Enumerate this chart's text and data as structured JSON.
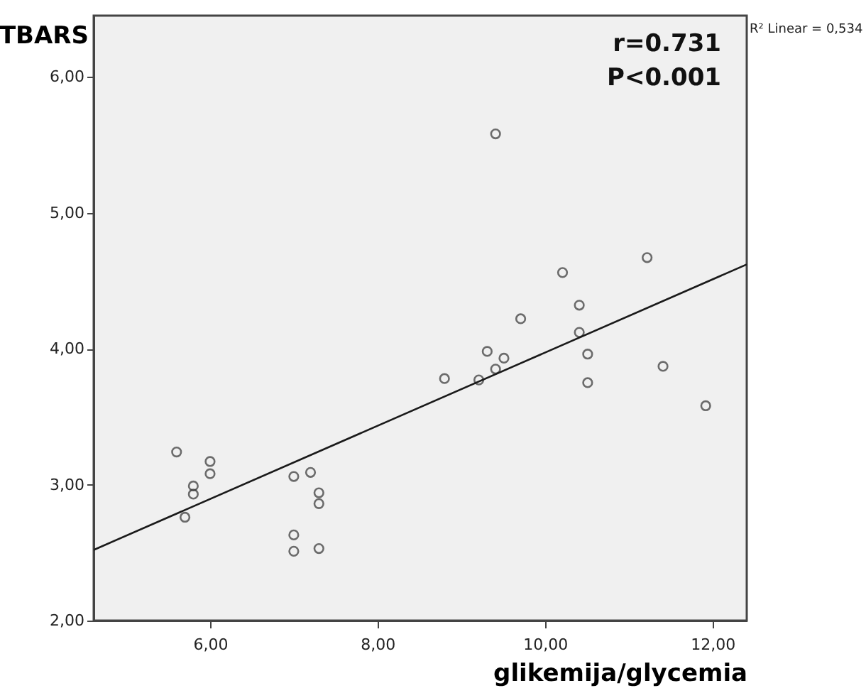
{
  "chart_data": {
    "type": "scatter",
    "xlabel": "glikemija/glycemia",
    "ylabel": "TBARS",
    "annotations": [
      "r=0.731",
      "P<0.001",
      "R² Linear = 0,534"
    ],
    "xlim": [
      4.61,
      12.41
    ],
    "ylim": [
      2.0,
      6.45
    ],
    "xticks": [
      {
        "value": 6,
        "label": "6,00"
      },
      {
        "value": 8,
        "label": "8,00"
      },
      {
        "value": 10,
        "label": "10,00"
      },
      {
        "value": 12,
        "label": "12,00"
      }
    ],
    "yticks": [
      {
        "value": 2,
        "label": "2,00"
      },
      {
        "value": 3,
        "label": "3,00"
      },
      {
        "value": 4,
        "label": "4,00"
      },
      {
        "value": 5,
        "label": "5,00"
      },
      {
        "value": 6,
        "label": "6,00"
      }
    ],
    "grid": false,
    "series": [
      {
        "marker": "circle",
        "color": "#333333",
        "x": [
          5.6,
          6.0,
          6.0,
          5.8,
          5.8,
          5.7,
          7.0,
          7.2,
          7.3,
          7.3,
          7.0,
          7.0,
          7.3,
          9.41,
          11.22,
          10.21,
          10.41,
          9.71,
          10.41,
          9.31,
          9.51,
          10.51,
          9.41,
          8.8,
          9.21,
          11.41,
          10.51,
          11.92
        ],
        "values": [
          3.24,
          3.17,
          3.08,
          2.99,
          2.93,
          2.76,
          3.06,
          3.09,
          2.94,
          2.86,
          2.63,
          2.51,
          2.53,
          5.58,
          4.67,
          4.56,
          4.32,
          4.22,
          4.12,
          3.98,
          3.93,
          3.96,
          3.85,
          3.78,
          3.77,
          3.87,
          3.75,
          3.58
        ]
      },
      {
        "type": "line",
        "color": "#1a1a1a",
        "line_style": "solid",
        "x": [
          4.61,
          12.41
        ],
        "values": [
          2.52,
          4.62
        ]
      }
    ]
  }
}
